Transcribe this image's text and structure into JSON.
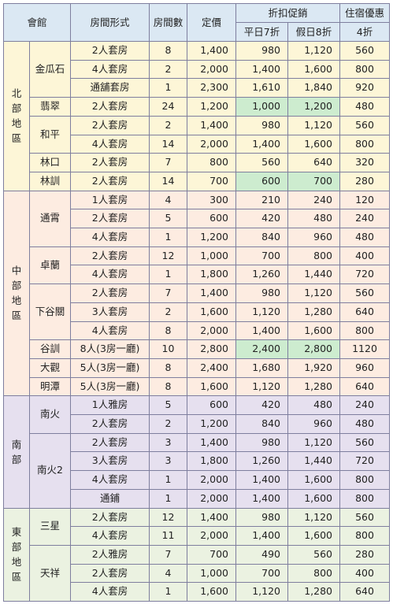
{
  "headers": {
    "venue": "會館",
    "room_type": "房間形式",
    "room_count": "房間數",
    "price": "定價",
    "discount": "折扣促銷",
    "weekday": "平日7折",
    "holiday": "假日8折",
    "stay": "住宿優惠",
    "stay_sub": "4折"
  },
  "regions": [
    {
      "name": "北部地區",
      "key": "north",
      "venues": [
        {
          "name": "金瓜石",
          "rows": [
            {
              "type": "2人套房",
              "count": "8",
              "price": "1,400",
              "wd": "980",
              "hd": "1,120",
              "stay": "560"
            },
            {
              "type": "4人套房",
              "count": "2",
              "price": "2,000",
              "wd": "1,400",
              "hd": "1,600",
              "stay": "800"
            },
            {
              "type": "通舖套房",
              "count": "1",
              "price": "2,300",
              "wd": "1,610",
              "hd": "1,840",
              "stay": "920"
            }
          ]
        },
        {
          "name": "翡翠",
          "rows": [
            {
              "type": "2人套房",
              "count": "24",
              "price": "1,200",
              "wd": "1,000",
              "hd": "1,200",
              "stay": "480",
              "hl": true
            }
          ]
        },
        {
          "name": "和平",
          "rows": [
            {
              "type": "2人套房",
              "count": "2",
              "price": "1,400",
              "wd": "980",
              "hd": "1,120",
              "stay": "560"
            },
            {
              "type": "4人套房",
              "count": "14",
              "price": "2,000",
              "wd": "1,400",
              "hd": "1,600",
              "stay": "800"
            }
          ]
        },
        {
          "name": "林口",
          "rows": [
            {
              "type": "2人套房",
              "count": "7",
              "price": "800",
              "wd": "560",
              "hd": "640",
              "stay": "320"
            }
          ]
        },
        {
          "name": "林訓",
          "rows": [
            {
              "type": "2人套房",
              "count": "14",
              "price": "700",
              "wd": "600",
              "hd": "700",
              "stay": "280",
              "hl": true
            }
          ]
        }
      ]
    },
    {
      "name": "中部地區",
      "key": "central",
      "venues": [
        {
          "name": "通霄",
          "rows": [
            {
              "type": "1人套房",
              "count": "4",
              "price": "300",
              "wd": "210",
              "hd": "240",
              "stay": "120"
            },
            {
              "type": "2人套房",
              "count": "5",
              "price": "600",
              "wd": "420",
              "hd": "480",
              "stay": "240"
            },
            {
              "type": "4人套房",
              "count": "1",
              "price": "1,200",
              "wd": "840",
              "hd": "960",
              "stay": "480"
            }
          ]
        },
        {
          "name": "卓蘭",
          "rows": [
            {
              "type": "2人套房",
              "count": "12",
              "price": "1,000",
              "wd": "700",
              "hd": "800",
              "stay": "400"
            },
            {
              "type": "4人套房",
              "count": "1",
              "price": "1,800",
              "wd": "1,260",
              "hd": "1,440",
              "stay": "720"
            }
          ]
        },
        {
          "name": "下谷關",
          "rows": [
            {
              "type": "2人套房",
              "count": "7",
              "price": "1,400",
              "wd": "980",
              "hd": "1,120",
              "stay": "560"
            },
            {
              "type": "3人套房",
              "count": "2",
              "price": "1,600",
              "wd": "1,120",
              "hd": "1,280",
              "stay": "640"
            },
            {
              "type": "4人套房",
              "count": "8",
              "price": "2,000",
              "wd": "1,400",
              "hd": "1,600",
              "stay": "800"
            }
          ]
        },
        {
          "name": "谷訓",
          "rows": [
            {
              "type": "8人(3房一廳)",
              "count": "10",
              "price": "2,800",
              "wd": "2,400",
              "hd": "2,800",
              "stay": "1120",
              "hl": true
            }
          ]
        },
        {
          "name": "大觀",
          "rows": [
            {
              "type": "5人(3房一廳)",
              "count": "8",
              "price": "2,400",
              "wd": "1,680",
              "hd": "1,920",
              "stay": "960"
            }
          ]
        },
        {
          "name": "明潭",
          "rows": [
            {
              "type": "5人(3房一廳)",
              "count": "8",
              "price": "1,600",
              "wd": "1,120",
              "hd": "1,280",
              "stay": "640"
            }
          ]
        }
      ]
    },
    {
      "name": "南部",
      "key": "south",
      "venues": [
        {
          "name": "南火",
          "rows": [
            {
              "type": "1人雅房",
              "count": "5",
              "price": "600",
              "wd": "420",
              "hd": "480",
              "stay": "240"
            },
            {
              "type": "2人套房",
              "count": "2",
              "price": "1,200",
              "wd": "840",
              "hd": "960",
              "stay": "480"
            }
          ]
        },
        {
          "name": "南火2",
          "rows": [
            {
              "type": "2人套房",
              "count": "3",
              "price": "1,400",
              "wd": "980",
              "hd": "1,120",
              "stay": "560"
            },
            {
              "type": "3人套房",
              "count": "3",
              "price": "1,800",
              "wd": "1,260",
              "hd": "1,440",
              "stay": "720"
            },
            {
              "type": "4人套房",
              "count": "1",
              "price": "2,000",
              "wd": "1,400",
              "hd": "1,600",
              "stay": "800"
            },
            {
              "type": "通鋪",
              "count": "1",
              "price": "2,000",
              "wd": "1,400",
              "hd": "1,600",
              "stay": "800"
            }
          ]
        }
      ]
    },
    {
      "name": "東部地區",
      "key": "east",
      "venues": [
        {
          "name": "三星",
          "rows": [
            {
              "type": "2人套房",
              "count": "12",
              "price": "1,400",
              "wd": "980",
              "hd": "1,120",
              "stay": "560"
            },
            {
              "type": "4人套房",
              "count": "11",
              "price": "2,000",
              "wd": "1,400",
              "hd": "1,600",
              "stay": "800"
            }
          ]
        },
        {
          "name": "天祥",
          "rows": [
            {
              "type": "2人雅房",
              "count": "7",
              "price": "700",
              "wd": "490",
              "hd": "560",
              "stay": "280"
            },
            {
              "type": "2人套房",
              "count": "4",
              "price": "1,000",
              "wd": "700",
              "hd": "800",
              "stay": "400"
            },
            {
              "type": "4人套房",
              "count": "1",
              "price": "1,600",
              "wd": "1,120",
              "hd": "1,280",
              "stay": "640"
            }
          ]
        }
      ]
    }
  ]
}
